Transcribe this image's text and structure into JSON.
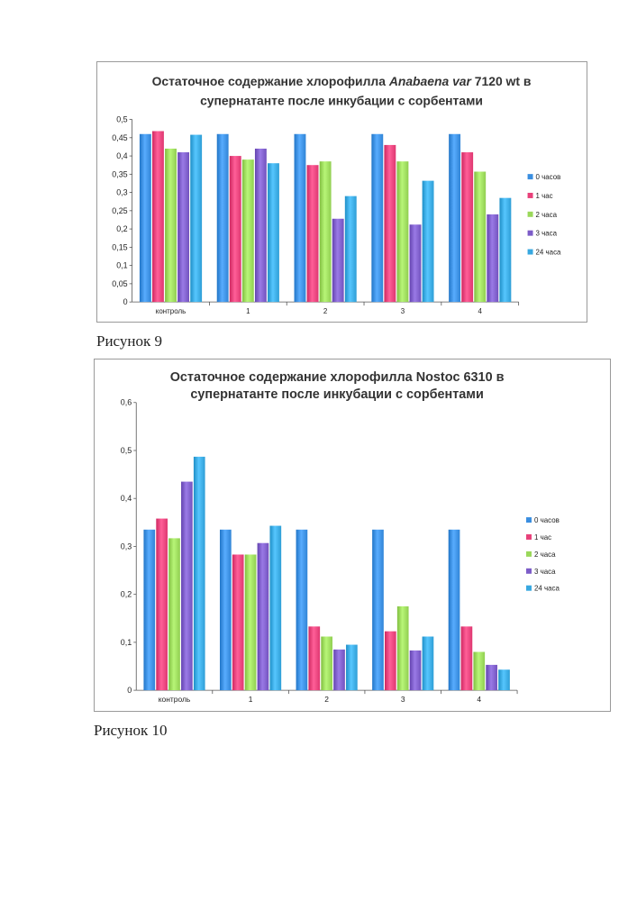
{
  "figures": [
    {
      "caption": "Рисунок 9",
      "title_line1_prefix": "Остаточное содержание хлорофилла ",
      "title_line1_italic": "Anabaena var",
      "title_line1_suffix": " 7120 wt в",
      "title_line2": "супернатанте после инкубации с сорбентами"
    },
    {
      "caption": "Рисунок 10",
      "title_line1_prefix": "Остаточное содержание хлорофилла Nostoc 6310  в",
      "title_line1_italic": "",
      "title_line1_suffix": "",
      "title_line2": "супернатанте после инкубации с сорбентами"
    }
  ],
  "colors": {
    "0 часов": "#3a8ee0",
    "1 час": "#e8417a",
    "2 часа": "#9ad85a",
    "3 часа": "#7c5cc8",
    "24 часа": "#38a8e0"
  },
  "chart_data": [
    {
      "type": "bar",
      "title": "Остаточное содержание хлорофилла Anabaena var 7120 wt в супернатанте после инкубации с сорбентами",
      "categories": [
        "контроль",
        "1",
        "2",
        "3",
        "4"
      ],
      "series": [
        {
          "name": "0 часов",
          "values": [
            0.46,
            0.46,
            0.46,
            0.46,
            0.46
          ]
        },
        {
          "name": "1 час",
          "values": [
            0.468,
            0.4,
            0.375,
            0.43,
            0.41
          ]
        },
        {
          "name": "2 часа",
          "values": [
            0.42,
            0.39,
            0.385,
            0.385,
            0.357
          ]
        },
        {
          "name": "3 часа",
          "values": [
            0.41,
            0.42,
            0.228,
            0.212,
            0.24
          ]
        },
        {
          "name": "24 часа",
          "values": [
            0.458,
            0.38,
            0.29,
            0.332,
            0.285
          ]
        }
      ],
      "ylim": [
        0,
        0.5
      ],
      "yticks": [
        "0",
        "0,05",
        "0,1",
        "0,15",
        "0,2",
        "0,25",
        "0,3",
        "0,35",
        "0,4",
        "0,45",
        "0,5"
      ],
      "grid": false,
      "legend": "right"
    },
    {
      "type": "bar",
      "title": "Остаточное содержание хлорофилла Nostoc 6310 в супернатанте после инкубации с сорбентами",
      "categories": [
        "контроль",
        "1",
        "2",
        "3",
        "4"
      ],
      "series": [
        {
          "name": "0 часов",
          "values": [
            0.335,
            0.335,
            0.335,
            0.335,
            0.335
          ]
        },
        {
          "name": "1 час",
          "values": [
            0.358,
            0.283,
            0.133,
            0.123,
            0.133
          ]
        },
        {
          "name": "2 часа",
          "values": [
            0.317,
            0.283,
            0.112,
            0.175,
            0.08
          ]
        },
        {
          "name": "3 часа",
          "values": [
            0.435,
            0.307,
            0.085,
            0.083,
            0.053
          ]
        },
        {
          "name": "24 часа",
          "values": [
            0.487,
            0.343,
            0.095,
            0.112,
            0.043
          ]
        }
      ],
      "ylim": [
        0,
        0.6
      ],
      "yticks": [
        "0",
        "0,1",
        "0,2",
        "0,3",
        "0,4",
        "0,5",
        "0,6"
      ],
      "grid": false,
      "legend": "right"
    }
  ]
}
